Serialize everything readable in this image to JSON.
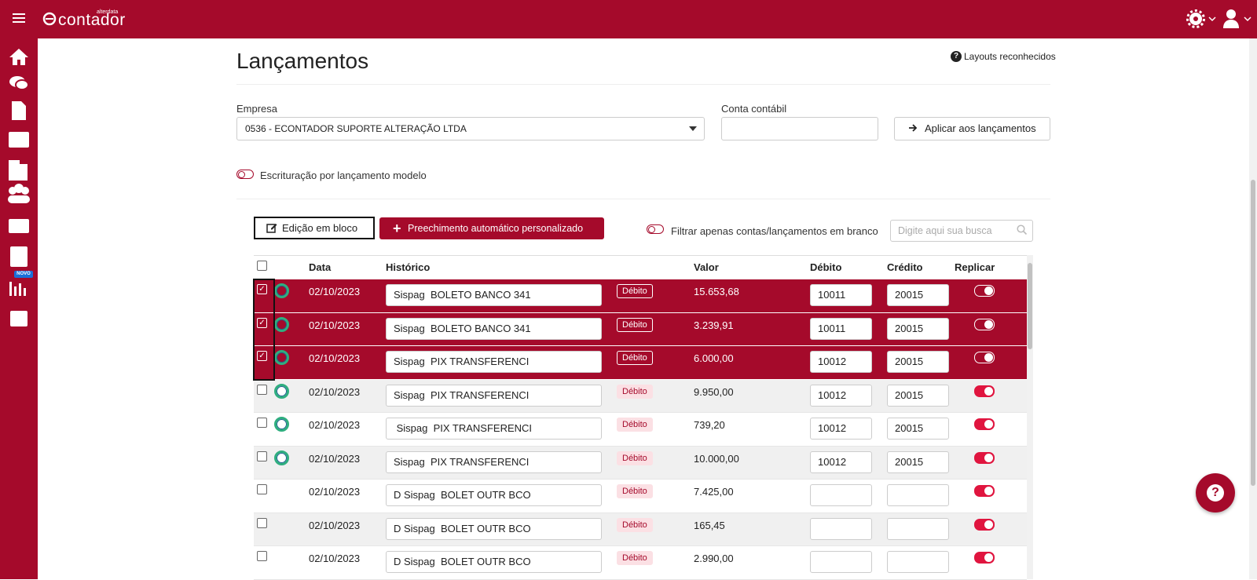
{
  "header": {
    "brand_small": "alterdata",
    "brand": "contador",
    "sidebar_badge": "NOVO"
  },
  "page": {
    "title": "Lançamentos",
    "help_link": "Layouts reconhecidos"
  },
  "form": {
    "empresa_label": "Empresa",
    "empresa_value": "0536 - ECONTADOR SUPORTE ALTERAÇÃO LTDA",
    "conta_label": "Conta contábil",
    "apply_button": "Aplicar aos lançamentos",
    "toggle_label": "Escrituração por lançamento modelo"
  },
  "toolbar": {
    "bulk_edit": "Edição em bloco",
    "auto_fill": "Preechimento automático personalizado",
    "filter_label": "Filtrar apenas contas/lançamentos em branco",
    "search_placeholder": "Digite aqui sua busca"
  },
  "table": {
    "columns": [
      "Data",
      "Histórico",
      "Valor",
      "Débito",
      "Crédito",
      "Replicar"
    ],
    "rows": [
      {
        "date": "02/10/2023",
        "historico": "Sispag  BOLETO BANCO 341",
        "tipo": "Débito",
        "valor": "15.653,68",
        "debito": "10011",
        "credito": "20015",
        "selected": true,
        "status": true
      },
      {
        "date": "02/10/2023",
        "historico": "Sispag  BOLETO BANCO 341",
        "tipo": "Débito",
        "valor": "3.239,91",
        "debito": "10011",
        "credito": "20015",
        "selected": true,
        "status": true
      },
      {
        "date": "02/10/2023",
        "historico": "Sispag  PIX TRANSFERENCI",
        "tipo": "Débito",
        "valor": "6.000,00",
        "debito": "10012",
        "credito": "20015",
        "selected": true,
        "status": true
      },
      {
        "date": "02/10/2023",
        "historico": "Sispag  PIX TRANSFERENCI",
        "tipo": "Débito",
        "valor": "9.950,00",
        "debito": "10012",
        "credito": "20015",
        "selected": false,
        "status": true
      },
      {
        "date": "02/10/2023",
        "historico": " Sispag  PIX TRANSFERENCI",
        "tipo": "Débito",
        "valor": "739,20",
        "debito": "10012",
        "credito": "20015",
        "selected": false,
        "status": true
      },
      {
        "date": "02/10/2023",
        "historico": "Sispag  PIX TRANSFERENCI",
        "tipo": "Débito",
        "valor": "10.000,00",
        "debito": "10012",
        "credito": "20015",
        "selected": false,
        "status": true
      },
      {
        "date": "02/10/2023",
        "historico": "D Sispag  BOLET OUTR BCO",
        "tipo": "Débito",
        "valor": "7.425,00",
        "debito": null,
        "credito": null,
        "selected": false,
        "status": false
      },
      {
        "date": "02/10/2023",
        "historico": "D Sispag  BOLET OUTR BCO",
        "tipo": "Débito",
        "valor": "165,45",
        "debito": null,
        "credito": null,
        "selected": false,
        "status": false
      },
      {
        "date": "02/10/2023",
        "historico": "D Sispag  BOLET OUTR BCO",
        "tipo": "Débito",
        "valor": "2.990,00",
        "debito": null,
        "credito": null,
        "selected": false,
        "status": false
      }
    ]
  }
}
